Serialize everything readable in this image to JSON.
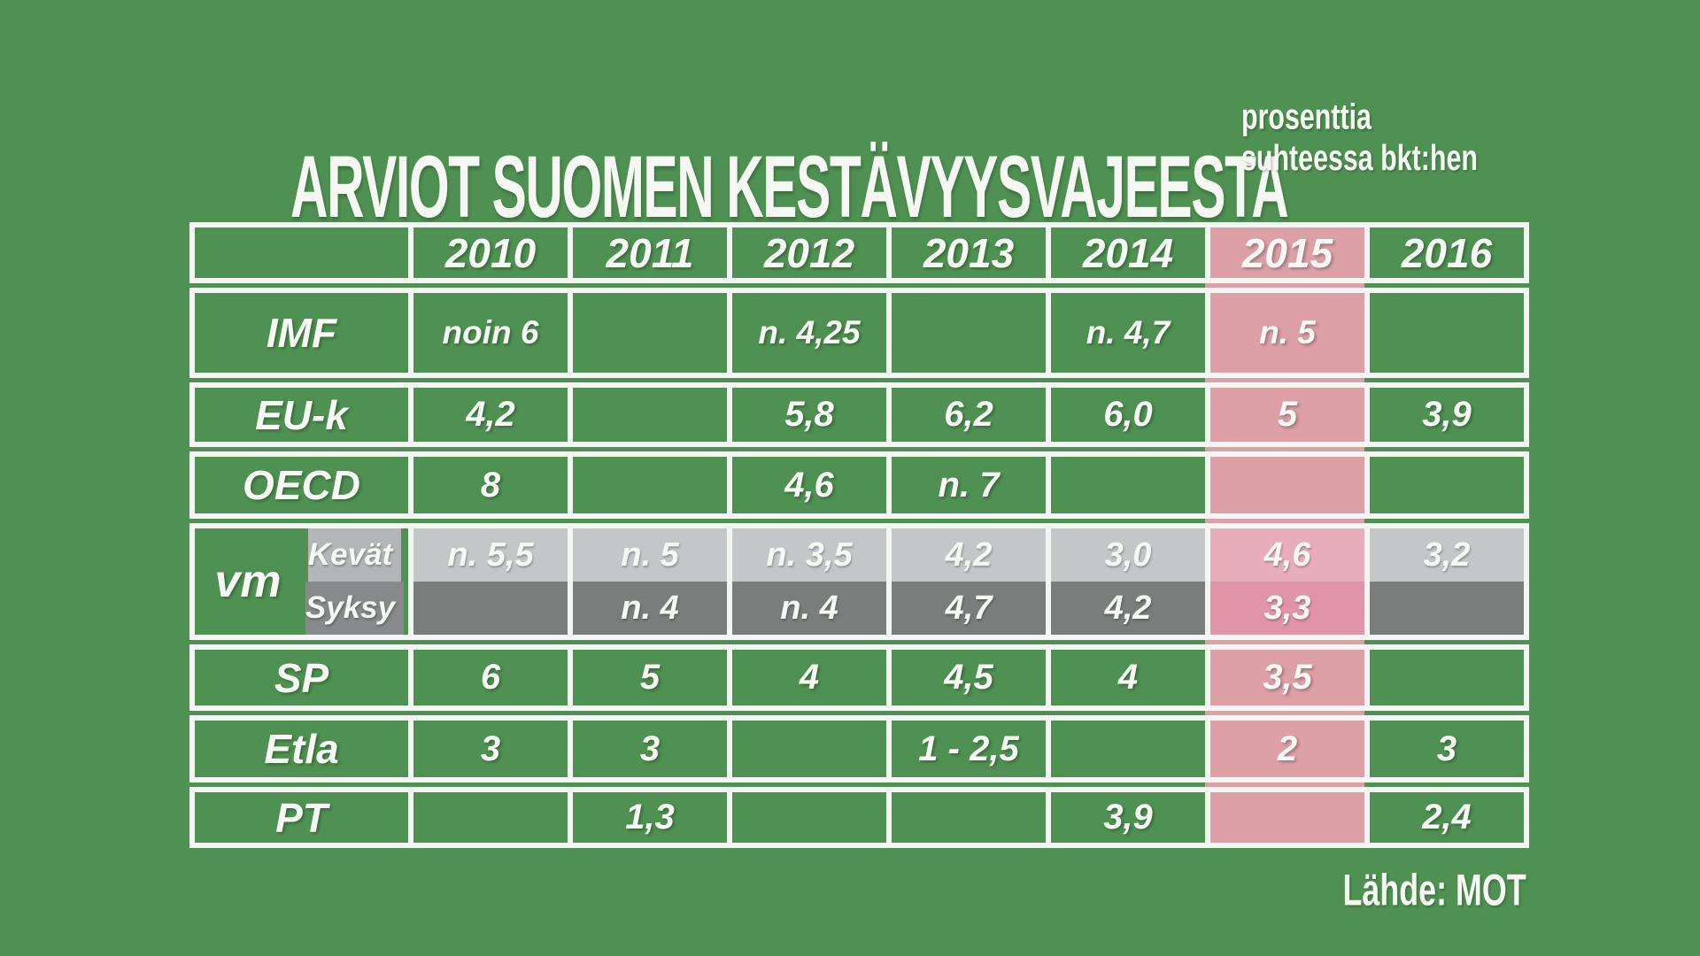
{
  "page": {
    "title": "ARVIOT SUOMEN KESTÄVYYSVAJEESTA",
    "subtitle_line1": "prosenttia",
    "subtitle_line2": "suhteessa bkt:hen",
    "source": "Lähde: MOT"
  },
  "colors": {
    "background": "#4f9152",
    "cell_green": "#4f9152",
    "border_white": "#f3f6f2",
    "pink_band": "#dda0a7",
    "pink_kevat": "#e8adbb",
    "pink_syksy": "#e094a8",
    "gray_light": "#c4c6c8",
    "gray_light_label": "#b3b5b7",
    "gray_dark": "#7b7d7c",
    "gray_dark_label": "#87898a"
  },
  "chart_data": {
    "type": "table",
    "title": "ARVIOT SUOMEN KESTÄVYYSVAJEESTA",
    "subtitle": "prosenttia suhteessa bkt:hen",
    "source": "Lähde: MOT",
    "columns": [
      "",
      "2010",
      "2011",
      "2012",
      "2013",
      "2014",
      "2015",
      "2016"
    ],
    "highlight_column": "2015",
    "rows": [
      {
        "label": "IMF",
        "values": [
          "noin 6",
          "",
          "n. 4,25",
          "",
          "n. 4,7",
          "n. 5",
          ""
        ]
      },
      {
        "label": "EU-k",
        "values": [
          "4,2",
          "",
          "5,8",
          "6,2",
          "6,0",
          "5",
          "3,9"
        ]
      },
      {
        "label": "OECD",
        "values": [
          "8",
          "",
          "4,6",
          "n. 7",
          "",
          "",
          ""
        ]
      },
      {
        "label": "vm",
        "subrows": [
          {
            "label": "Kevät",
            "values": [
              "n. 5,5",
              "n. 5",
              "n. 3,5",
              "4,2",
              "3,0",
              "4,6",
              "3,2"
            ]
          },
          {
            "label": "Syksy",
            "values": [
              "",
              "n. 4",
              "n. 4",
              "4,7",
              "4,2",
              "3,3",
              ""
            ]
          }
        ]
      },
      {
        "label": "SP",
        "values": [
          "6",
          "5",
          "4",
          "4,5",
          "4",
          "3,5",
          ""
        ]
      },
      {
        "label": "Etla",
        "values": [
          "3",
          "3",
          "",
          "1 - 2,5",
          "",
          "2",
          "3"
        ]
      },
      {
        "label": "PT",
        "values": [
          "",
          "1,3",
          "",
          "",
          "3,9",
          "",
          "2,4"
        ]
      }
    ]
  }
}
